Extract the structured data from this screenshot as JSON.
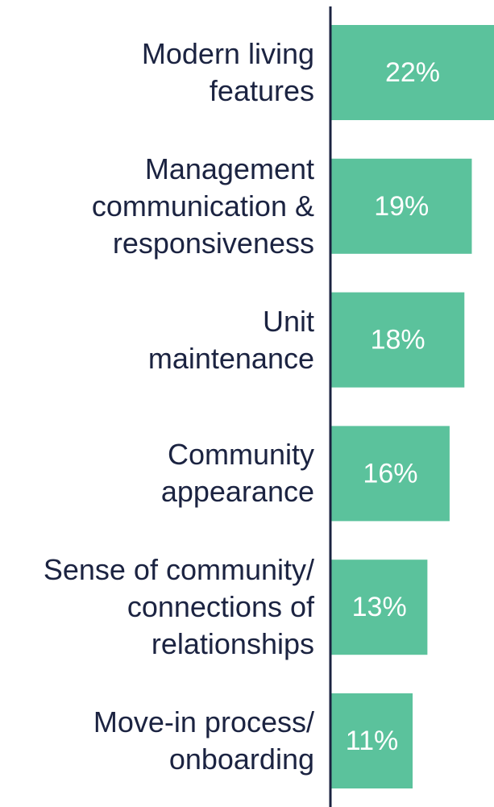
{
  "chart_data": {
    "type": "barh",
    "categories": [
      "Modern living\nfeatures",
      "Management\ncommunication &\nresponsiveness",
      "Unit\nmaintenance",
      "Community\nappearance",
      "Sense of community/\nconnections of\nrelationships",
      "Move-in process/\nonboarding"
    ],
    "values": [
      22,
      19,
      18,
      16,
      13,
      11
    ],
    "value_labels": [
      "22%",
      "19%",
      "18%",
      "16%",
      "13%",
      "11%"
    ],
    "color": "#5bc29c",
    "xlim": [
      0,
      22
    ]
  }
}
